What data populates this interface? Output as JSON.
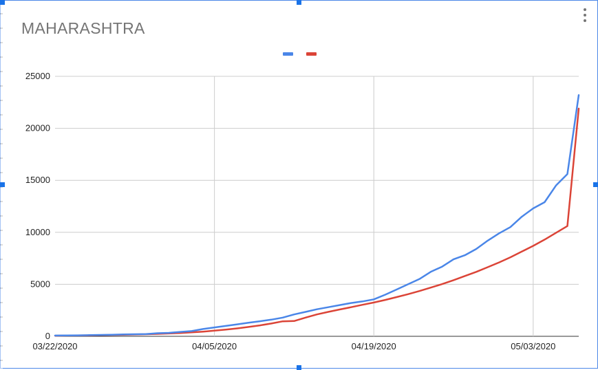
{
  "chart_data": {
    "type": "line",
    "title": "MAHARASHTRA",
    "xlabel": "",
    "ylabel": "",
    "x_tick_labels": [
      "03/22/2020",
      "04/05/2020",
      "04/19/2020",
      "05/03/2020"
    ],
    "x_range": [
      "03/22/2020",
      "05/07/2020"
    ],
    "ylim": [
      0,
      25000
    ],
    "y_ticks": [
      0,
      5000,
      10000,
      15000,
      20000,
      25000
    ],
    "grid": true,
    "legend": "top-center",
    "x": [
      "03/22/2020",
      "03/23/2020",
      "03/24/2020",
      "03/25/2020",
      "03/26/2020",
      "03/27/2020",
      "03/28/2020",
      "03/29/2020",
      "03/30/2020",
      "03/31/2020",
      "04/01/2020",
      "04/02/2020",
      "04/03/2020",
      "04/04/2020",
      "04/05/2020",
      "04/06/2020",
      "04/07/2020",
      "04/08/2020",
      "04/09/2020",
      "04/10/2020",
      "04/11/2020",
      "04/12/2020",
      "04/13/2020",
      "04/14/2020",
      "04/15/2020",
      "04/16/2020",
      "04/17/2020",
      "04/18/2020",
      "04/19/2020",
      "04/20/2020",
      "04/21/2020",
      "04/22/2020",
      "04/23/2020",
      "04/24/2020",
      "04/25/2020",
      "04/26/2020",
      "04/27/2020",
      "04/28/2020",
      "04/29/2020",
      "04/30/2020",
      "05/01/2020",
      "05/02/2020",
      "05/03/2020",
      "05/04/2020",
      "05/05/2020",
      "05/06/2020",
      "05/07/2020"
    ],
    "series": [
      {
        "color": "#4a86e8",
        "values": [
          70,
          80,
          90,
          110,
          130,
          150,
          180,
          200,
          220,
          300,
          330,
          420,
          500,
          700,
          850,
          1000,
          1150,
          1300,
          1450,
          1600,
          1800,
          2100,
          2350,
          2600,
          2800,
          3000,
          3200,
          3350,
          3550,
          4000,
          4500,
          5000,
          5500,
          6200,
          6700,
          7400,
          7800,
          8400,
          9200,
          9900,
          10500,
          11500,
          12300,
          12900,
          14500,
          15600,
          23200
        ]
      },
      {
        "color": "#db4437",
        "values": [
          60,
          70,
          80,
          95,
          110,
          130,
          150,
          175,
          200,
          230,
          270,
          320,
          380,
          450,
          540,
          640,
          760,
          900,
          1050,
          1230,
          1440,
          1470,
          1800,
          2100,
          2350,
          2580,
          2800,
          3030,
          3250,
          3500,
          3770,
          4050,
          4350,
          4680,
          5020,
          5400,
          5800,
          6200,
          6650,
          7100,
          7600,
          8150,
          8700,
          9300,
          9950,
          10600,
          21900
        ]
      }
    ]
  }
}
